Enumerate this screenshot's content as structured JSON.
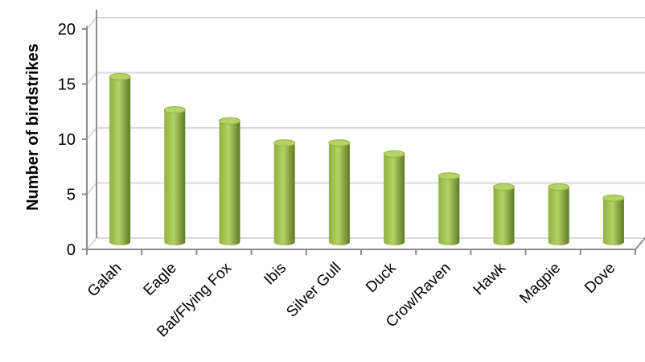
{
  "chart_data": {
    "type": "bar",
    "style": "3d-cylinder",
    "ylabel": "Number of birdstrikes",
    "xlabel": "",
    "ylim": [
      0,
      20
    ],
    "yticks": [
      0,
      5,
      10,
      15,
      20
    ],
    "grid": true,
    "legend": "none",
    "categories": [
      "Galah",
      "Eagle",
      "Bat/Flying Fox",
      "Ibis",
      "Silver Gull",
      "Duck",
      "Crow/Raven",
      "Hawk",
      "Magpie",
      "Dove"
    ],
    "values": [
      15,
      12,
      11,
      9,
      9,
      8,
      6,
      5,
      5,
      4
    ],
    "colors": {
      "bar_light": "#b5d267",
      "bar_mid": "#8fb23f",
      "bar_dark": "#5f7a24",
      "gridline": "#d9d9d9",
      "axis": "#8c8c8c"
    }
  }
}
